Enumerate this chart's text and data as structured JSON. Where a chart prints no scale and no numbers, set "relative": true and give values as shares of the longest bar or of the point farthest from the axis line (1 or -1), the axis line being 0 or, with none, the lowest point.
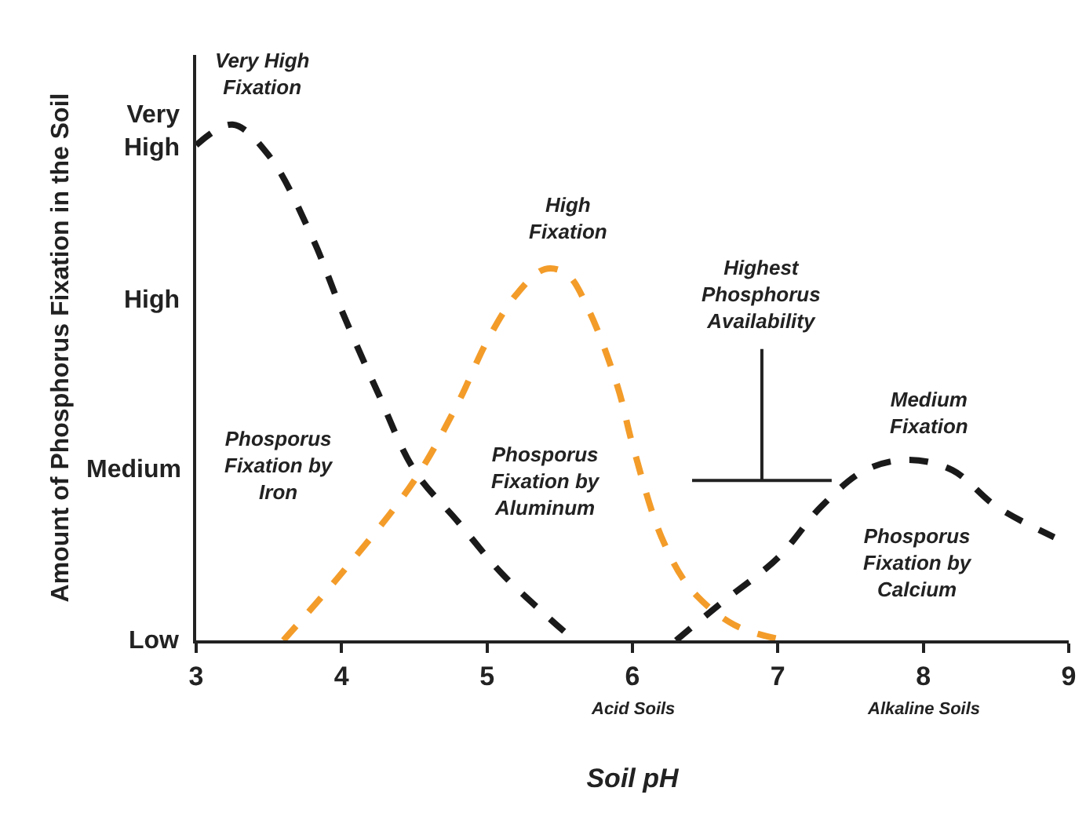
{
  "chart_data": {
    "type": "line",
    "xlabel": "Soil pH",
    "ylabel": "Amount of Phosphorus Fixation in the Soil",
    "xlim": [
      3,
      9
    ],
    "xticks": [
      3,
      4,
      5,
      6,
      7,
      8,
      9
    ],
    "relative": true,
    "marker": "none",
    "line_style": "dashed",
    "series": [
      {
        "color": "#1a1a1a",
        "x": [
          3.0,
          3.25,
          3.5,
          3.8,
          4.0,
          4.25,
          4.5,
          4.8,
          5.1,
          5.4,
          5.6
        ],
        "values": [
          0.96,
          1.0,
          0.94,
          0.78,
          0.64,
          0.48,
          0.33,
          0.23,
          0.13,
          0.05,
          0.0
        ]
      },
      {
        "color": "#f39c2a",
        "x": [
          3.6,
          4.0,
          4.5,
          4.8,
          5.0,
          5.2,
          5.4,
          5.55,
          5.7,
          5.9,
          6.0,
          6.2,
          6.4,
          6.7,
          7.05
        ],
        "values": [
          0.0,
          0.13,
          0.31,
          0.46,
          0.58,
          0.67,
          0.72,
          0.71,
          0.64,
          0.49,
          0.38,
          0.2,
          0.1,
          0.03,
          0.0
        ]
      },
      {
        "color": "#1a1a1a",
        "x": [
          6.3,
          6.6,
          7.0,
          7.3,
          7.6,
          7.9,
          8.2,
          8.5,
          8.9
        ],
        "values": [
          0.0,
          0.07,
          0.16,
          0.26,
          0.33,
          0.35,
          0.33,
          0.26,
          0.2
        ]
      }
    ],
    "annotations": [
      "Low",
      "Medium",
      "High",
      "Very\nHigh",
      "Very High\nFixation",
      "High\nFixation",
      "Highest\nPhosphorus\nAvailability",
      "Medium\nFixation",
      "Phosporus\nFixation by\nIron",
      "Phosporus\nFixation by\nAluminum",
      "Phosporus\nFixation by\nCalcium",
      "Acid Soils",
      "Alkaline Soils"
    ]
  }
}
